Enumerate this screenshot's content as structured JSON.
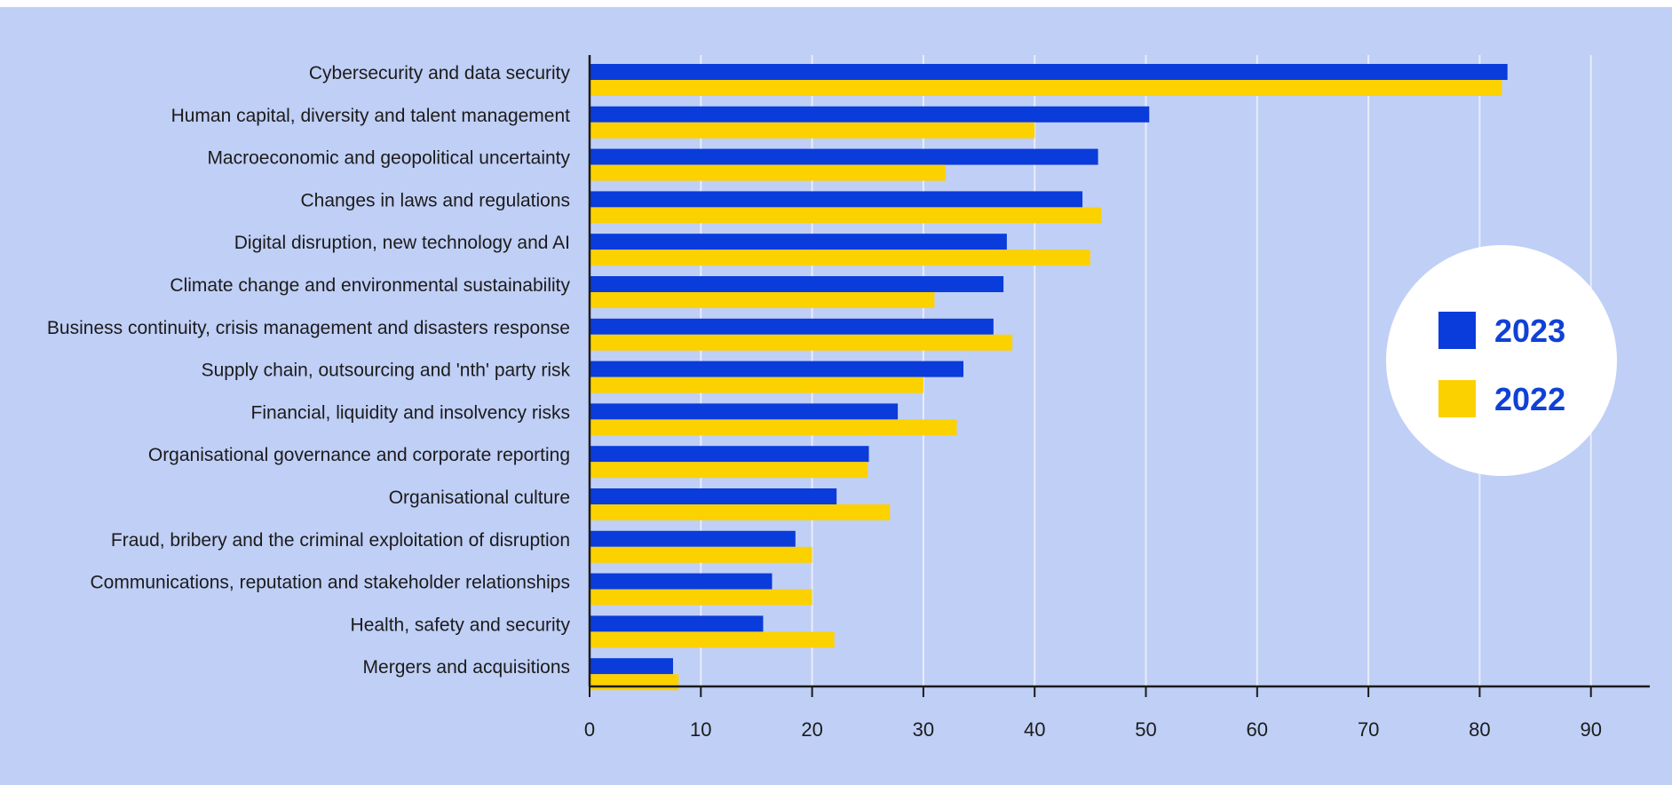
{
  "chart_data": {
    "type": "bar",
    "orientation": "horizontal",
    "categories": [
      "Cybersecurity and data security",
      "Human capital, diversity and talent management",
      "Macroeconomic and geopolitical uncertainty",
      "Changes in laws and regulations",
      "Digital disruption, new technology and AI",
      "Climate change and environmental sustainability",
      "Business continuity, crisis management and disasters response",
      "Supply chain, outsourcing and 'nth' party risk",
      "Financial, liquidity and insolvency risks",
      "Organisational governance and corporate reporting",
      "Organisational culture",
      "Fraud, bribery and the criminal exploitation of disruption",
      "Communications, reputation and stakeholder relationships",
      "Health, safety and security",
      "Mergers and acquisitions"
    ],
    "series": [
      {
        "name": "2023",
        "color": "#0a3bdb",
        "values": [
          82.5,
          50.3,
          45.7,
          44.3,
          37.5,
          37.2,
          36.3,
          33.6,
          27.7,
          25.1,
          22.2,
          18.5,
          16.4,
          15.6,
          7.5
        ]
      },
      {
        "name": "2022",
        "color": "#fcd100",
        "values": [
          82.0,
          40.0,
          32.0,
          46.0,
          45.0,
          31.0,
          38.0,
          30.0,
          33.0,
          25.0,
          27.0,
          20.0,
          20.0,
          22.0,
          8.0
        ]
      }
    ],
    "xlim": [
      0,
      95
    ],
    "xticks": [
      "0",
      "10",
      "20",
      "30",
      "40",
      "50",
      "60",
      "70",
      "80",
      "90"
    ],
    "grid": true,
    "legend_position": "right",
    "background_color": "#c0cff6"
  }
}
